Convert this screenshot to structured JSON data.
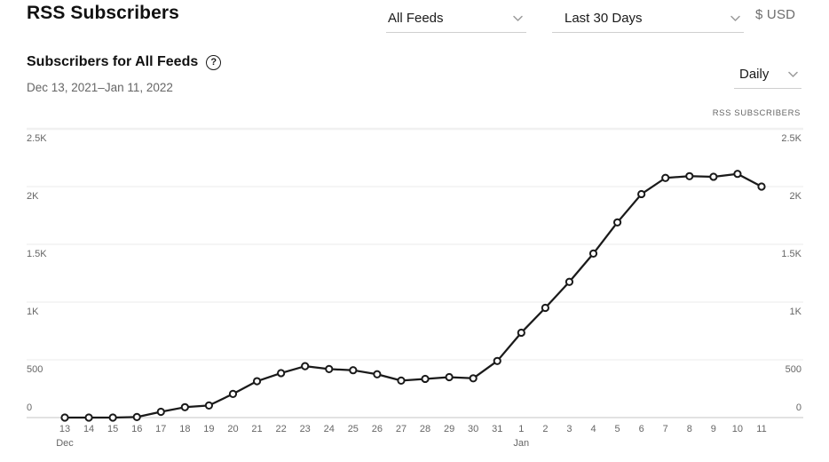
{
  "header": {
    "title": "RSS Subscribers",
    "feeds_dropdown": {
      "value": "All Feeds"
    },
    "range_dropdown": {
      "value": "Last 30 Days"
    },
    "currency": "$ USD"
  },
  "chart_header": {
    "title": "Subscribers for All Feeds",
    "help_glyph": "?",
    "date_range": "Dec 13, 2021–Jan 11, 2022",
    "granularity_dropdown": {
      "value": "Daily"
    },
    "axis_caption": "RSS SUBSCRIBERS"
  },
  "colors": {
    "line": "#1a1a1a",
    "point_fill": "#ffffff",
    "gridline": "#ebebeb",
    "top_gridline": "#f0f0f0",
    "baseline": "#d9d9d9",
    "tick_text": "#666666"
  },
  "chart_data": {
    "type": "line",
    "title": "Subscribers for All Feeds",
    "ylabel": "RSS Subscribers",
    "ylim": [
      0,
      2500
    ],
    "grid": true,
    "legend_position": "none",
    "y_ticks": [
      0,
      500,
      1000,
      1500,
      2000,
      2500
    ],
    "y_tick_labels": [
      "0",
      "500",
      "1K",
      "1.5K",
      "2K",
      "2.5K"
    ],
    "categories": [
      "Dec 13",
      "Dec 14",
      "Dec 15",
      "Dec 16",
      "Dec 17",
      "Dec 18",
      "Dec 19",
      "Dec 20",
      "Dec 21",
      "Dec 22",
      "Dec 23",
      "Dec 24",
      "Dec 25",
      "Dec 26",
      "Dec 27",
      "Dec 28",
      "Dec 29",
      "Dec 30",
      "Dec 31",
      "Jan 1",
      "Jan 2",
      "Jan 3",
      "Jan 4",
      "Jan 5",
      "Jan 6",
      "Jan 7",
      "Jan 8",
      "Jan 9",
      "Jan 10",
      "Jan 11"
    ],
    "x_tick_labels": [
      "13",
      "14",
      "15",
      "16",
      "17",
      "18",
      "19",
      "20",
      "21",
      "22",
      "23",
      "24",
      "25",
      "26",
      "27",
      "28",
      "29",
      "30",
      "31",
      "1",
      "2",
      "3",
      "4",
      "5",
      "6",
      "7",
      "8",
      "9",
      "10",
      "11"
    ],
    "month_labels": [
      {
        "text": "Dec",
        "at_index": 0
      },
      {
        "text": "Jan",
        "at_index": 19
      }
    ],
    "series": [
      {
        "name": "RSS Subscribers",
        "values": [
          0,
          0,
          0,
          5,
          50,
          90,
          105,
          205,
          315,
          385,
          445,
          420,
          410,
          375,
          320,
          335,
          350,
          340,
          490,
          735,
          950,
          1175,
          1420,
          1690,
          1935,
          2075,
          2090,
          2085,
          2110,
          2000
        ]
      }
    ]
  }
}
